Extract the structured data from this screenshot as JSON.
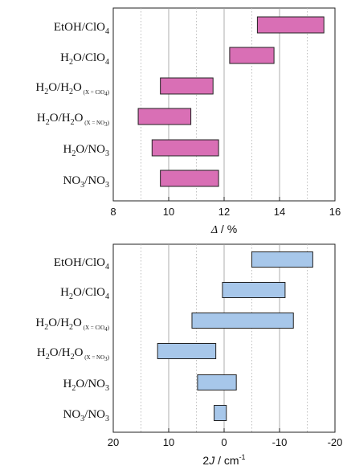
{
  "chart_data": [
    {
      "type": "bar",
      "orientation": "horizontal",
      "style": "floating-range",
      "categories": [
        "EtOH/ClO4",
        "H2O/ClO4",
        "H2O/H2O (X = ClO4)",
        "H2O/H2O (X = NO3)",
        "H2O/NO3",
        "NO3/NO3"
      ],
      "ranges": [
        [
          13.2,
          15.6
        ],
        [
          12.2,
          13.8
        ],
        [
          9.7,
          11.6
        ],
        [
          8.9,
          10.8
        ],
        [
          9.4,
          11.8
        ],
        [
          9.7,
          11.8
        ]
      ],
      "xlabel": "Δ / %",
      "xlim": [
        8,
        16
      ],
      "xticks": [
        "8",
        "10",
        "12",
        "14",
        "16"
      ],
      "grid": "vertical-dotted",
      "bar_fill": "#d96fb5",
      "title": ""
    },
    {
      "type": "bar",
      "orientation": "horizontal",
      "style": "floating-range",
      "categories": [
        "EtOH/ClO4",
        "H2O/ClO4",
        "H2O/H2O (X = ClO4)",
        "H2O/H2O (X = NO3)",
        "H2O/NO3",
        "NO3/NO3"
      ],
      "ranges": [
        [
          -5,
          -16
        ],
        [
          0.3,
          -11
        ],
        [
          5.8,
          -12.5
        ],
        [
          12,
          1.5
        ],
        [
          4.8,
          -2.2
        ],
        [
          1.8,
          -0.4
        ]
      ],
      "xlabel": "2J / cm-1",
      "xlim": [
        20,
        -20
      ],
      "xaxis_reversed": true,
      "xticks": [
        "20",
        "10",
        "0",
        "-10",
        "-20"
      ],
      "grid": "vertical-dotted",
      "bar_fill": "#a7c7ea",
      "title": ""
    }
  ]
}
